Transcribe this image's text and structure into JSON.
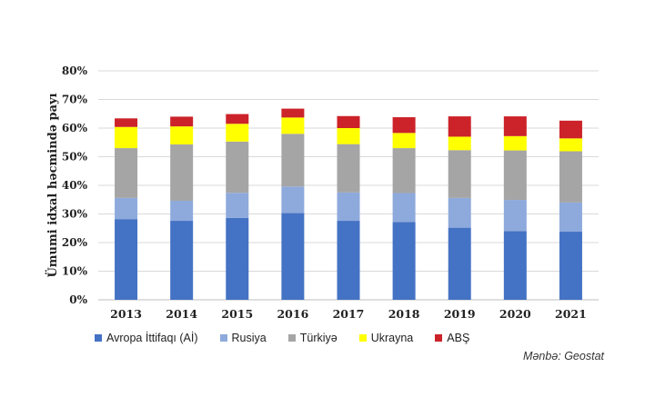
{
  "chart_data": {
    "type": "bar",
    "stacked": true,
    "title": "",
    "xlabel": "",
    "ylabel": "Ümumi idxal həcmində payı",
    "ylim": [
      0,
      80
    ],
    "yticks": [
      0,
      10,
      20,
      30,
      40,
      50,
      60,
      70,
      80
    ],
    "ytick_labels": [
      "0%",
      "10%",
      "20%",
      "30%",
      "40%",
      "50%",
      "60%",
      "70%",
      "80%"
    ],
    "grid": true,
    "legend_position": "bottom",
    "categories": [
      "2013",
      "2014",
      "2015",
      "2016",
      "2017",
      "2018",
      "2019",
      "2020",
      "2021"
    ],
    "series": [
      {
        "name": "Avropa İttifaqı (Aİ)",
        "color": "#4472c4",
        "values": [
          28.2,
          27.6,
          28.6,
          30.3,
          27.6,
          27.2,
          25.2,
          24.0,
          23.8
        ]
      },
      {
        "name": "Rusiya",
        "color": "#8eaadc",
        "values": [
          7.4,
          7.0,
          8.8,
          9.3,
          9.9,
          10.1,
          10.4,
          10.9,
          10.2
        ]
      },
      {
        "name": "Türkiyə",
        "color": "#a5a5a5",
        "values": [
          17.4,
          19.7,
          17.9,
          18.4,
          16.9,
          15.7,
          16.7,
          17.3,
          17.9
        ]
      },
      {
        "name": "Ukrayna",
        "color": "#ffff00",
        "values": [
          7.4,
          6.3,
          6.2,
          5.7,
          5.6,
          5.3,
          4.7,
          5.0,
          4.5
        ]
      },
      {
        "name": "ABŞ",
        "color": "#cc2229",
        "values": [
          3.0,
          3.4,
          3.4,
          3.1,
          4.2,
          5.5,
          7.1,
          6.9,
          6.2
        ]
      }
    ]
  },
  "source_note": "Mənbə: Geostat"
}
